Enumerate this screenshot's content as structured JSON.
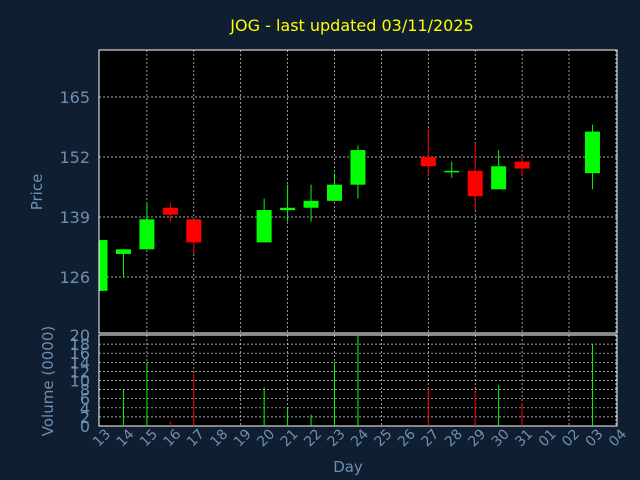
{
  "chart_data": {
    "type": "candlestick",
    "title": "JOG - last updated 03/11/2025",
    "price_label": "Price",
    "volume_label": "Volume (0000)",
    "xlabel": "Day",
    "price_ticks": [
      126,
      139,
      152,
      165
    ],
    "volume_ticks": [
      0,
      2,
      4,
      6,
      8,
      10,
      12,
      14,
      16,
      18,
      20
    ],
    "colors": {
      "up": "#00ff00",
      "down": "#ff0000",
      "title": "#ffff00",
      "text": "#6f8fb0",
      "background": "#0f1e30",
      "plot": "#000000"
    },
    "days": [
      {
        "label": "13",
        "open": 123,
        "high": 134,
        "low": 123,
        "close": 134,
        "volume": 0
      },
      {
        "label": "14",
        "open": 131,
        "high": 132,
        "low": 126,
        "close": 132,
        "volume": 8
      },
      {
        "label": "15",
        "open": 132,
        "high": 142,
        "low": 132,
        "close": 138.5,
        "volume": 14
      },
      {
        "label": "16",
        "open": 141,
        "high": 142,
        "low": 138,
        "close": 139.5,
        "volume": 1
      },
      {
        "label": "17",
        "open": 138.5,
        "high": 138.5,
        "low": 131,
        "close": 133.5,
        "volume": 11.5
      },
      {
        "label": "18",
        "volume": 0
      },
      {
        "label": "19",
        "volume": 0
      },
      {
        "label": "20",
        "open": 133.5,
        "high": 143,
        "low": 133.5,
        "close": 140.5,
        "volume": 8.5
      },
      {
        "label": "21",
        "open": 140.5,
        "high": 146,
        "low": 138,
        "close": 141,
        "volume": 4
      },
      {
        "label": "22",
        "open": 141,
        "high": 146,
        "low": 138,
        "close": 142.5,
        "volume": 2.5
      },
      {
        "label": "23",
        "open": 142.5,
        "high": 148.5,
        "low": 142.5,
        "close": 146,
        "volume": 14
      },
      {
        "label": "24",
        "open": 146,
        "high": 154.5,
        "low": 143,
        "close": 153.5,
        "volume": 20
      },
      {
        "label": "25",
        "volume": 0
      },
      {
        "label": "26",
        "volume": 0
      },
      {
        "label": "27",
        "open": 152,
        "high": 158,
        "low": 148,
        "close": 150,
        "volume": 8.5
      },
      {
        "label": "28",
        "open": 149,
        "high": 151,
        "low": 147.5,
        "close": 149,
        "volume": 0
      },
      {
        "label": "29",
        "open": 149,
        "high": 155,
        "low": 140.5,
        "close": 143.5,
        "volume": 8
      },
      {
        "label": "30",
        "open": 145,
        "high": 153.5,
        "low": 145,
        "close": 150,
        "volume": 9
      },
      {
        "label": "31",
        "open": 151,
        "high": 152,
        "low": 148,
        "close": 149.5,
        "volume": 5
      },
      {
        "label": "01",
        "volume": 0
      },
      {
        "label": "02",
        "volume": 0
      },
      {
        "label": "03",
        "open": 148.5,
        "high": 159,
        "low": 145,
        "close": 157.5,
        "volume": 18
      },
      {
        "label": "04",
        "volume": 0
      }
    ]
  }
}
